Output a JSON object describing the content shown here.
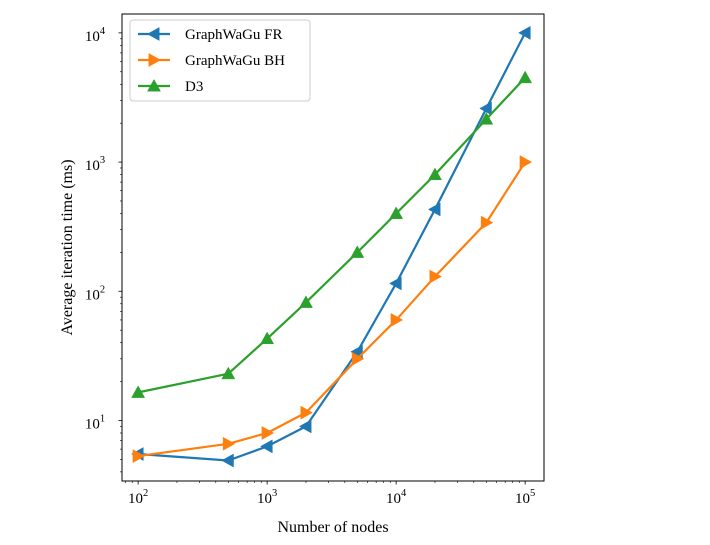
{
  "chart_data": {
    "type": "line",
    "xlabel": "Number of nodes",
    "ylabel": "Average iteration time (ms)",
    "xscale": "log",
    "yscale": "log",
    "xlim": [
      75,
      140000
    ],
    "ylim": [
      3.4,
      14000
    ],
    "grid": false,
    "legend_position": "top-left",
    "x_ticks": [
      {
        "base": "10",
        "exp": "2",
        "value": 100
      },
      {
        "base": "10",
        "exp": "3",
        "value": 1000
      },
      {
        "base": "10",
        "exp": "4",
        "value": 10000
      },
      {
        "base": "10",
        "exp": "5",
        "value": 100000
      }
    ],
    "y_ticks": [
      {
        "base": "10",
        "exp": "1",
        "value": 10
      },
      {
        "base": "10",
        "exp": "2",
        "value": 100
      },
      {
        "base": "10",
        "exp": "3",
        "value": 1000
      },
      {
        "base": "10",
        "exp": "4",
        "value": 10000
      }
    ],
    "series": [
      {
        "name": "GraphWaGu FR",
        "color": "#1f77b4",
        "marker": "triangle-left",
        "x": [
          100,
          500,
          1000,
          2000,
          5000,
          10000,
          20000,
          50000,
          100000
        ],
        "y": [
          5.5,
          4.9,
          6.3,
          9.0,
          34,
          115,
          430,
          2600,
          10000
        ]
      },
      {
        "name": "GraphWaGu BH",
        "color": "#ff7f0e",
        "marker": "triangle-right",
        "x": [
          100,
          500,
          1000,
          2000,
          5000,
          10000,
          20000,
          50000,
          100000
        ],
        "y": [
          5.3,
          6.6,
          8.0,
          11.5,
          30,
          60,
          130,
          340,
          1000
        ]
      },
      {
        "name": "D3",
        "color": "#2ca02c",
        "marker": "triangle-up",
        "x": [
          100,
          500,
          1000,
          2000,
          5000,
          10000,
          20000,
          50000,
          100000
        ],
        "y": [
          16.5,
          23,
          43,
          82,
          200,
          400,
          800,
          2150,
          4500
        ]
      }
    ]
  }
}
